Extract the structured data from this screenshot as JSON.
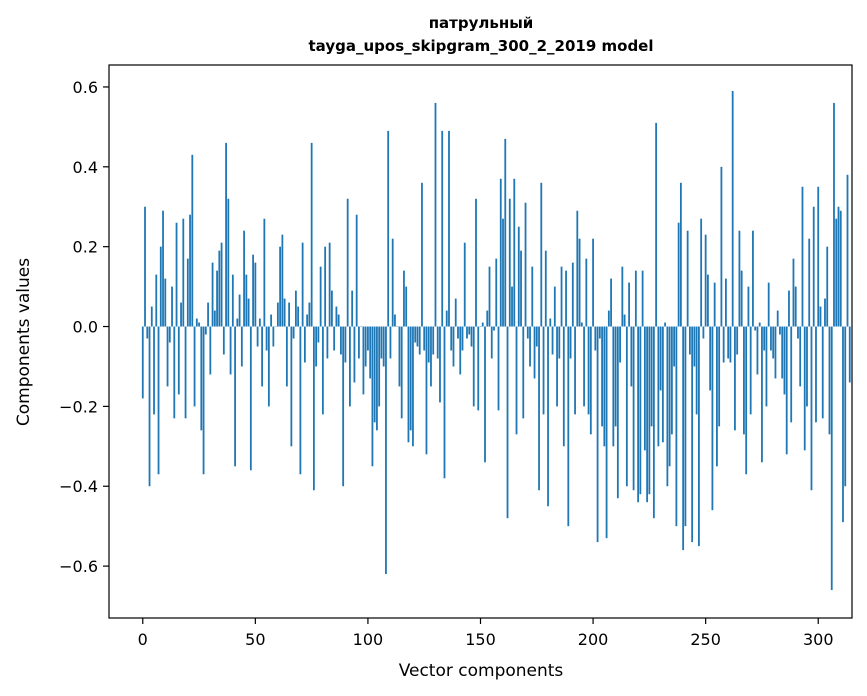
{
  "chart_data": {
    "type": "bar",
    "title": "патрульный",
    "subtitle": "tayga_upos_skipgram_300_2_2019 model",
    "xlabel": "Vector components",
    "ylabel": "Components values",
    "xlim": [
      -15,
      315
    ],
    "ylim": [
      -0.73,
      0.655
    ],
    "xticks": [
      0,
      50,
      100,
      150,
      200,
      250,
      300
    ],
    "xtick_labels": [
      "0",
      "50",
      "100",
      "150",
      "200",
      "250",
      "300"
    ],
    "yticks": [
      -0.6,
      -0.4,
      -0.2,
      0.0,
      0.2,
      0.4,
      0.6
    ],
    "ytick_labels": [
      "−0.6",
      "−0.4",
      "−0.2",
      "0.0",
      "0.2",
      "0.4",
      "0.6"
    ],
    "grid": false,
    "bar_color": "#1f77b4",
    "values": [
      -0.18,
      0.3,
      -0.03,
      -0.4,
      0.05,
      -0.22,
      0.13,
      -0.37,
      0.2,
      0.29,
      0.12,
      -0.15,
      -0.04,
      0.1,
      -0.23,
      0.26,
      -0.17,
      0.06,
      0.27,
      -0.23,
      0.17,
      0.28,
      0.43,
      -0.2,
      0.02,
      0.01,
      -0.26,
      -0.37,
      -0.02,
      0.06,
      -0.12,
      0.16,
      0.04,
      0.14,
      0.19,
      0.21,
      -0.07,
      0.46,
      0.32,
      -0.12,
      0.13,
      -0.35,
      0.02,
      0.08,
      -0.1,
      0.24,
      0.13,
      0.07,
      -0.36,
      0.18,
      0.16,
      -0.05,
      0.02,
      -0.15,
      0.27,
      -0.06,
      -0.2,
      0.03,
      -0.05,
      0.0,
      0.06,
      0.2,
      0.23,
      0.07,
      -0.15,
      0.06,
      -0.3,
      -0.03,
      0.09,
      0.05,
      -0.37,
      0.21,
      -0.09,
      0.03,
      0.06,
      0.46,
      -0.41,
      -0.1,
      -0.04,
      0.15,
      -0.22,
      0.2,
      -0.08,
      0.21,
      0.09,
      -0.06,
      0.05,
      0.03,
      -0.07,
      -0.4,
      -0.09,
      0.32,
      -0.2,
      0.09,
      -0.14,
      0.28,
      -0.08,
      0.0,
      -0.17,
      -0.1,
      -0.06,
      -0.13,
      -0.35,
      -0.24,
      -0.26,
      -0.2,
      -0.08,
      -0.1,
      -0.62,
      0.49,
      -0.08,
      0.22,
      0.03,
      0.0,
      -0.15,
      -0.23,
      0.14,
      0.1,
      -0.29,
      -0.26,
      -0.3,
      -0.04,
      -0.05,
      -0.07,
      0.36,
      -0.06,
      -0.32,
      -0.09,
      -0.15,
      -0.07,
      0.56,
      -0.08,
      -0.19,
      0.49,
      -0.38,
      0.04,
      0.49,
      -0.06,
      -0.1,
      0.07,
      -0.03,
      -0.12,
      -0.06,
      0.21,
      -0.03,
      -0.02,
      -0.05,
      -0.2,
      0.32,
      -0.21,
      0.0,
      0.01,
      -0.34,
      0.04,
      0.15,
      -0.08,
      -0.01,
      0.17,
      -0.21,
      0.37,
      0.27,
      0.47,
      -0.48,
      0.32,
      0.1,
      0.37,
      -0.27,
      0.25,
      0.19,
      -0.23,
      0.31,
      -0.03,
      -0.1,
      0.15,
      -0.13,
      -0.05,
      -0.41,
      0.36,
      -0.22,
      0.19,
      -0.45,
      0.02,
      -0.07,
      0.1,
      -0.2,
      -0.08,
      0.15,
      -0.3,
      0.14,
      -0.5,
      -0.08,
      0.16,
      -0.22,
      0.29,
      0.22,
      0.01,
      -0.2,
      0.17,
      -0.22,
      -0.27,
      0.22,
      -0.06,
      -0.54,
      -0.03,
      -0.25,
      -0.3,
      -0.53,
      0.04,
      0.12,
      -0.3,
      -0.25,
      -0.43,
      -0.09,
      0.15,
      0.03,
      -0.4,
      0.11,
      -0.15,
      -0.41,
      0.14,
      -0.44,
      -0.42,
      0.14,
      -0.31,
      -0.44,
      -0.42,
      -0.25,
      -0.48,
      0.51,
      -0.3,
      -0.16,
      -0.29,
      0.01,
      -0.4,
      -0.35,
      -0.27,
      -0.1,
      -0.5,
      0.26,
      0.36,
      -0.56,
      -0.5,
      0.24,
      -0.07,
      -0.54,
      -0.1,
      -0.22,
      -0.55,
      0.27,
      -0.03,
      0.23,
      0.13,
      -0.16,
      -0.46,
      0.11,
      -0.35,
      -0.25,
      0.4,
      -0.09,
      0.12,
      -0.08,
      -0.09,
      0.59,
      -0.26,
      -0.07,
      0.24,
      0.14,
      -0.27,
      -0.37,
      0.1,
      -0.22,
      0.24,
      -0.01,
      -0.12,
      0.01,
      -0.34,
      -0.06,
      -0.2,
      0.11,
      -0.06,
      -0.08,
      -0.13,
      0.04,
      -0.02,
      -0.13,
      -0.17,
      -0.32,
      0.09,
      -0.24,
      0.17,
      0.1,
      -0.03,
      -0.15,
      0.35,
      -0.31,
      -0.2,
      0.22,
      -0.41,
      0.3,
      -0.24,
      0.35,
      0.05,
      -0.23,
      0.07,
      0.2,
      -0.27,
      -0.66,
      0.56,
      0.27,
      0.3,
      0.29,
      -0.49,
      -0.4,
      0.38,
      -0.14
    ]
  }
}
